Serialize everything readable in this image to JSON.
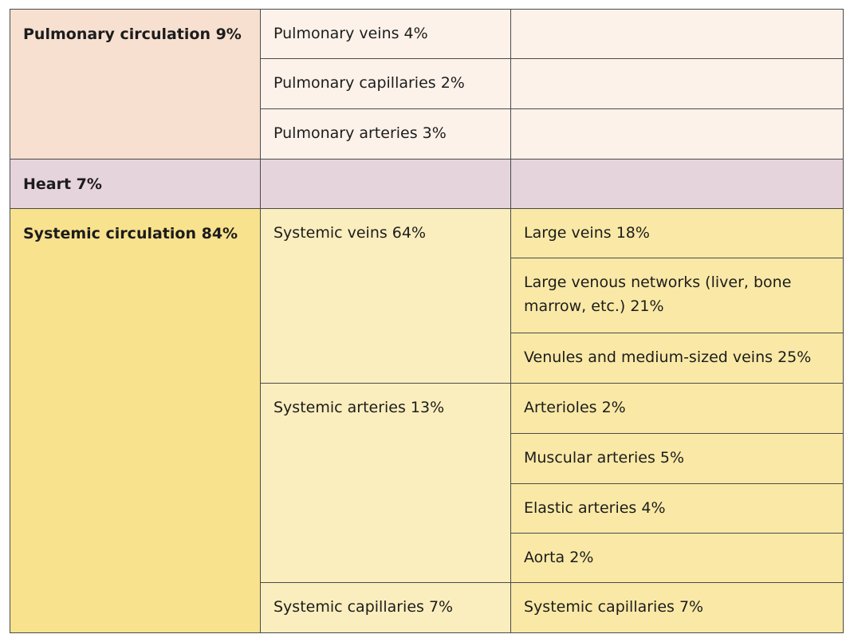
{
  "pulmonary": {
    "group_label": "Pulmonary circulation 9%",
    "items": [
      {
        "label": "Pulmonary veins 4%",
        "detail": ""
      },
      {
        "label": "Pulmonary capillaries 2%",
        "detail": ""
      },
      {
        "label": "Pulmonary arteries 3%",
        "detail": ""
      }
    ]
  },
  "heart": {
    "group_label": "Heart 7%",
    "sub": "",
    "detail": ""
  },
  "systemic": {
    "group_label": "Systemic circulation 84%",
    "veins": {
      "label": "Systemic veins 64%",
      "details": [
        "Large veins 18%",
        "Large venous networks (liver, bone marrow, etc.) 21%",
        "Venules and medium-sized veins 25%"
      ]
    },
    "arteries": {
      "label": "Systemic arteries 13%",
      "details": [
        "Arterioles 2%",
        "Muscular arteries 5%",
        "Elastic arteries 4%",
        "Aorta 2%"
      ]
    },
    "capillaries": {
      "label": "Systemic capillaries 7%",
      "detail": "Systemic capillaries 7%"
    }
  },
  "colors": {
    "pulmonary_group": "#f7e0d0",
    "pulmonary_sub": "#fdf2ea",
    "heart": "#e6d4dc",
    "systemic_group": "#f9e28d",
    "systemic_sub": "#fbeebe",
    "systemic_leaf": "#fae9a6",
    "border": "#4a4a4a"
  }
}
